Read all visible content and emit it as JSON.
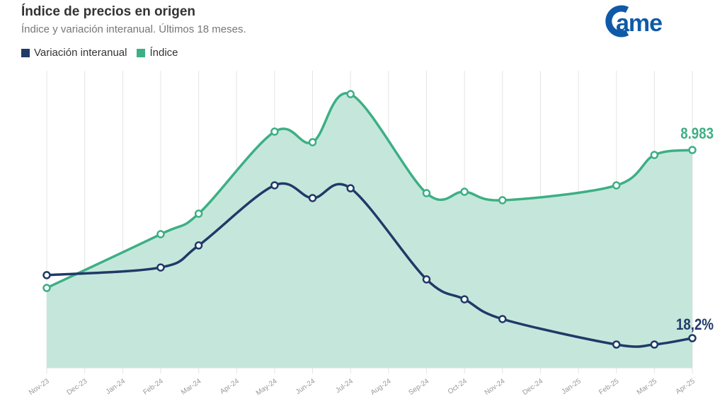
{
  "chart_data": {
    "type": "area",
    "title": "Índice de precios en origen",
    "subtitle": "Índice y variación interanual. Últimos 18 meses.",
    "logo_text": "came",
    "categories": [
      "Nov-23",
      "Dec-23",
      "Jan-24",
      "Feb-24",
      "Mar-24",
      "Apr-24",
      "May-24",
      "Jun-24",
      "Jul-24",
      "Aug-24",
      "Sep-24",
      "Oct-24",
      "Nov-24",
      "Dec-24",
      "Jan-25",
      "Feb-25",
      "Mar-25",
      "Apr-25"
    ],
    "series": [
      {
        "name": "Variación interanual",
        "color": "#1f3a68",
        "values": [
          56.8,
          null,
          null,
          61.5,
          75,
          null,
          111.8,
          104,
          110,
          null,
          54.2,
          42,
          29.9,
          null,
          null,
          14.3,
          14.3,
          18.2
        ],
        "end_label": "18,2%"
      },
      {
        "name": "Índice",
        "color": "#3daf85",
        "fill": "#c5e7db",
        "values": [
          3296,
          null,
          null,
          5512,
          6358,
          null,
          9741,
          9304,
          11287,
          null,
          7204,
          7262,
          6912,
          null,
          null,
          7525,
          8779,
          8983
        ],
        "end_label": "8.983"
      }
    ],
    "grid": "vertical",
    "legend": "top-left"
  }
}
